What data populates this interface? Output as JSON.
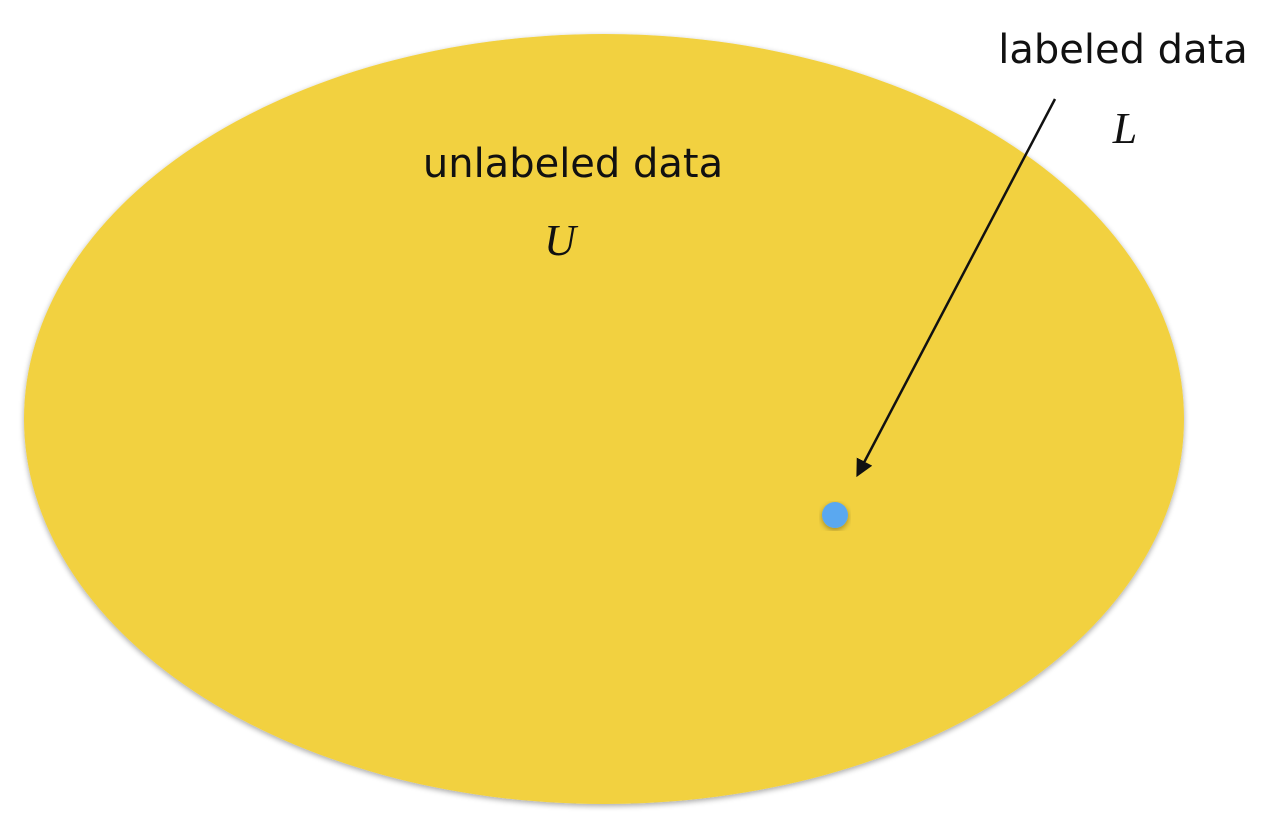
{
  "diagram": {
    "unlabeled": {
      "label": "unlabeled data",
      "symbol": "U",
      "color": "#F2D13F"
    },
    "labeled": {
      "label": "labeled data",
      "symbol": "L",
      "color": "#5AA8F0"
    },
    "arrow_color": "#111111"
  }
}
